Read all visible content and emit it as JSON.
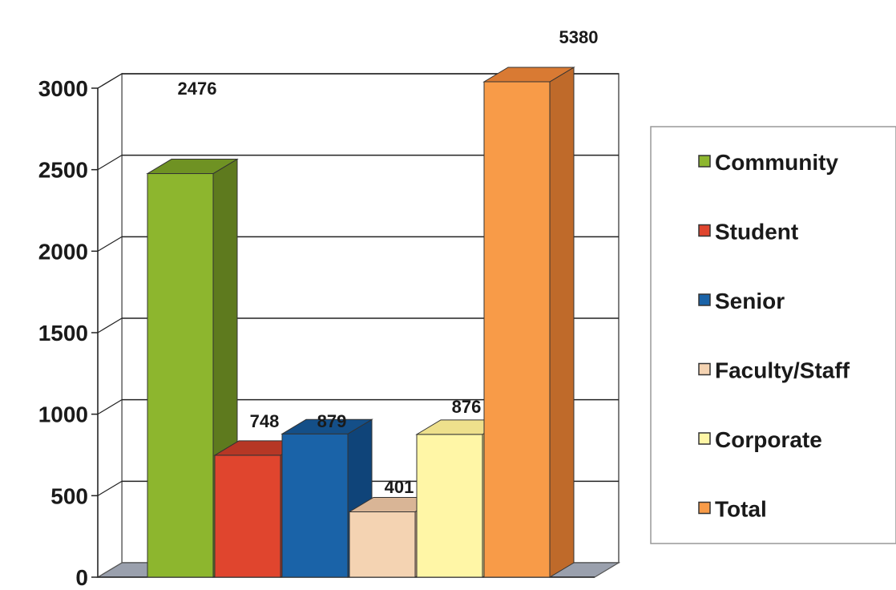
{
  "chart_data": {
    "type": "bar",
    "subtype": "3d-clustered-column",
    "title": "",
    "xlabel": "",
    "ylabel": "",
    "ylim": [
      0,
      3000
    ],
    "yticks": [
      0,
      500,
      1000,
      1500,
      2000,
      2500,
      3000
    ],
    "grid": true,
    "legend_position": "right",
    "series": [
      {
        "name": "Community",
        "value": 2476,
        "label": "2476",
        "color": "#8DB62E",
        "side": "#5E7A1E",
        "top": "#6F9223"
      },
      {
        "name": "Student",
        "value": 748,
        "label": "748",
        "color": "#E0452E",
        "side": "#A42E1E",
        "top": "#B63725"
      },
      {
        "name": "Senior",
        "value": 879,
        "label": "879",
        "color": "#1A63A8",
        "side": "#0F4479",
        "top": "#144F88"
      },
      {
        "name": "Faculty/Staff",
        "value": 401,
        "label": "401",
        "color": "#F4D3B2",
        "side": "#C9A384",
        "top": "#D9B596"
      },
      {
        "name": "Corporate",
        "value": 876,
        "label": "876",
        "color": "#FFF6A6",
        "side": "#D6C977",
        "top": "#EEE08C"
      },
      {
        "name": "Total",
        "value": 5380,
        "label": "5380",
        "color": "#F89B48",
        "side": "#BF6A2A",
        "top": "#D97A33"
      }
    ]
  }
}
